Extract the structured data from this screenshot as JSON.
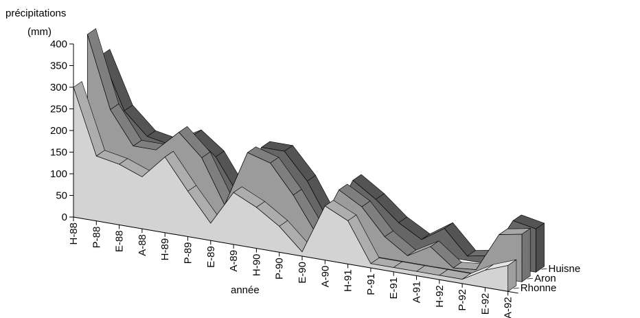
{
  "chart_data": {
    "type": "area",
    "style": "3d-depth",
    "title": "",
    "ylabel": "précipitations (mm)",
    "ylabel_lines": [
      "précipitations",
      "(mm)"
    ],
    "xlabel": "année",
    "ylim": [
      0,
      400
    ],
    "yticks": [
      "0",
      "50",
      "100",
      "150",
      "200",
      "250",
      "300",
      "350",
      "400"
    ],
    "grid": true,
    "categories": [
      "H-88",
      "P-88",
      "E-88",
      "A-88",
      "H-89",
      "P-89",
      "E-89",
      "A-89",
      "H-90",
      "P-90",
      "E-90",
      "A-90",
      "H-91",
      "P-91",
      "E-91",
      "A-91",
      "H-92",
      "P-92",
      "E-92",
      "A-92"
    ],
    "series": [
      {
        "name": "Rhonne",
        "color": "#d3d3d3",
        "values": [
          300,
          150,
          140,
          120,
          175,
          105,
          40,
          120,
          95,
          60,
          10,
          125,
          100,
          10,
          10,
          10,
          10,
          10,
          40,
          60
        ]
      },
      {
        "name": "Aron",
        "color": "#9b9b9b",
        "values": [
          400,
          235,
          160,
          160,
          210,
          160,
          60,
          190,
          175,
          110,
          30,
          140,
          110,
          50,
          15,
          45,
          5,
          10,
          100,
          110
        ]
      },
      {
        "name": "Huisne",
        "color": "#666666",
        "values": [
          330,
          210,
          160,
          150,
          180,
          140,
          60,
          180,
          180,
          120,
          30,
          140,
          105,
          60,
          30,
          65,
          10,
          20,
          110,
          100
        ]
      }
    ],
    "legend_position": "bottom-right"
  }
}
